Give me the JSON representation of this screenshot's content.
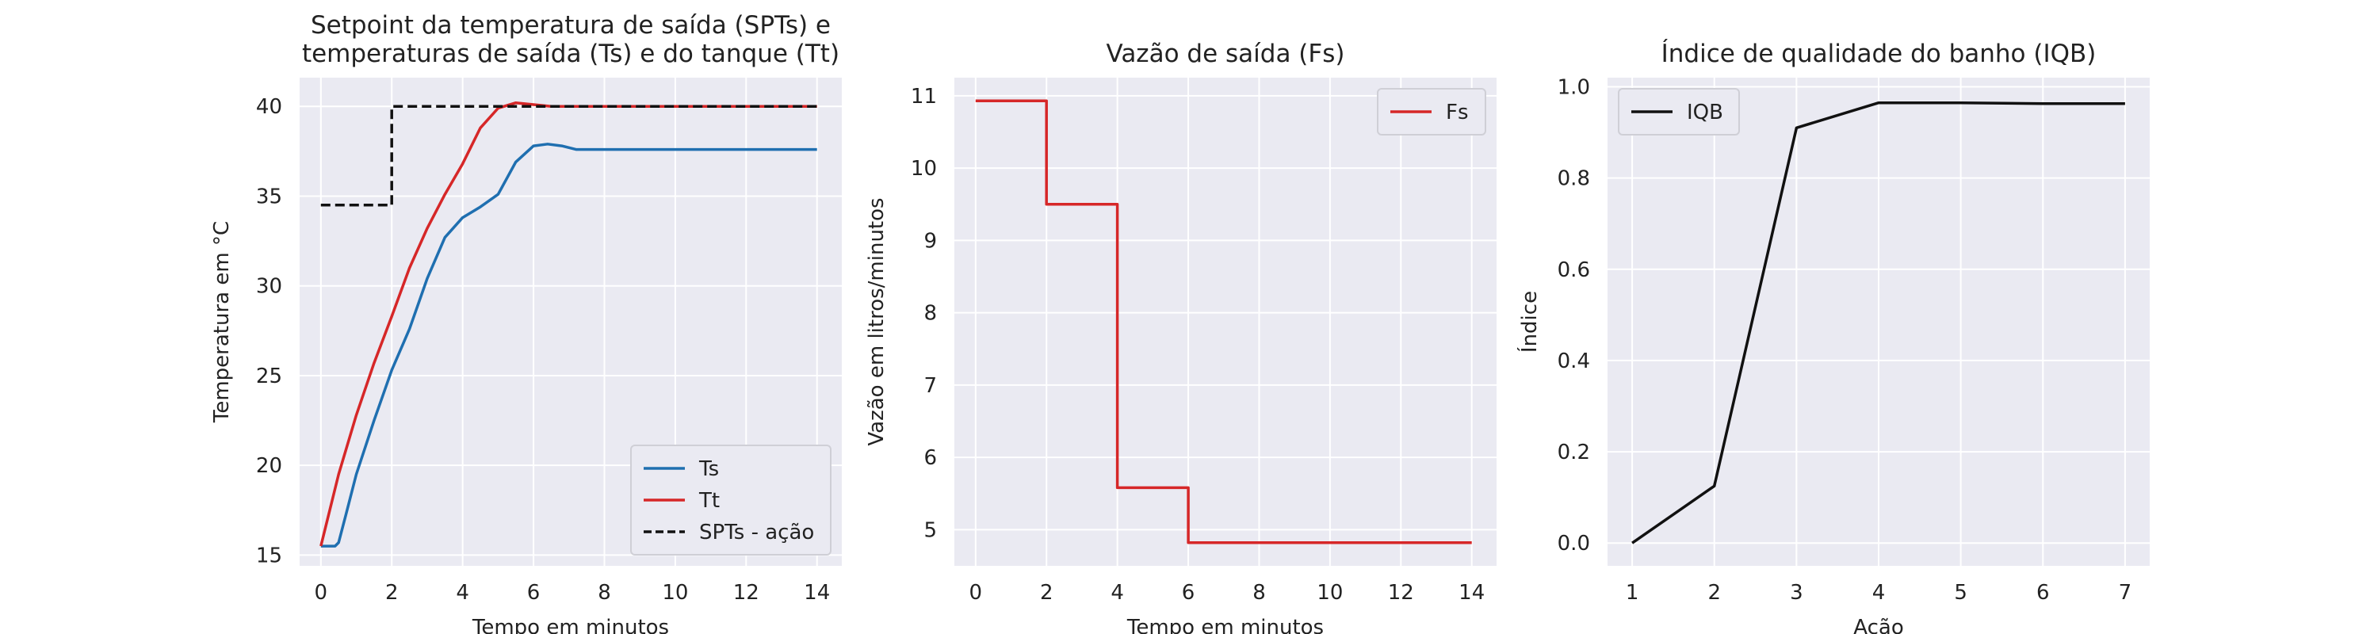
{
  "chart_data": [
    {
      "type": "line",
      "title": "Setpoint da temperatura de saída (SPTs) e\ntemperaturas de saída (Ts) e do tanque (Tt)",
      "xlabel": "Tempo em minutos",
      "ylabel": "Temperatura em °C",
      "xlim": [
        -0.6,
        14.7
      ],
      "ylim": [
        14.4,
        41.6
      ],
      "xticks": [
        0,
        2,
        4,
        6,
        8,
        10,
        12,
        14
      ],
      "yticks": [
        15,
        20,
        25,
        30,
        35,
        40
      ],
      "grid": true,
      "legend": "bottom-right",
      "series": [
        {
          "name": "Ts",
          "color": "#1f6fb0",
          "dash": false,
          "x": [
            0,
            0.4,
            0.5,
            0.7,
            1.0,
            1.5,
            2.0,
            2.5,
            3.0,
            3.5,
            4.0,
            4.5,
            5.0,
            5.5,
            6.0,
            6.4,
            6.8,
            7.2,
            8,
            9,
            10,
            11,
            12,
            13,
            14
          ],
          "y": [
            15.5,
            15.5,
            15.7,
            17.2,
            19.5,
            22.5,
            25.3,
            27.6,
            30.4,
            32.7,
            33.8,
            34.4,
            35.1,
            36.9,
            37.8,
            37.9,
            37.8,
            37.6,
            37.6,
            37.6,
            37.6,
            37.6,
            37.6,
            37.6,
            37.6
          ]
        },
        {
          "name": "Tt",
          "color": "#d62728",
          "dash": false,
          "x": [
            0,
            0.5,
            1.0,
            1.5,
            2.0,
            2.5,
            3.0,
            3.5,
            4.0,
            4.5,
            5.0,
            5.5,
            6.0,
            6.5,
            7,
            8,
            9,
            10,
            11,
            12,
            13,
            14
          ],
          "y": [
            15.5,
            19.5,
            22.8,
            25.7,
            28.3,
            31.0,
            33.2,
            35.1,
            36.8,
            38.8,
            39.9,
            40.2,
            40.1,
            40.0,
            40.0,
            40.0,
            40.0,
            40.0,
            40.0,
            40.0,
            40.0,
            40.0
          ]
        },
        {
          "name": "SPTs - ação",
          "color": "#111111",
          "dash": true,
          "x": [
            0,
            2,
            2,
            14
          ],
          "y": [
            34.5,
            34.5,
            40.0,
            40.0
          ]
        }
      ]
    },
    {
      "type": "line",
      "title": "Vazão de saída (Fs)",
      "xlabel": "Tempo em minutos",
      "ylabel": "Vazão em litros/minutos",
      "xlim": [
        -0.6,
        14.7
      ],
      "ylim": [
        4.5,
        11.25
      ],
      "xticks": [
        0,
        2,
        4,
        6,
        8,
        10,
        12,
        14
      ],
      "yticks": [
        5,
        6,
        7,
        8,
        9,
        10,
        11
      ],
      "grid": true,
      "legend": "top-right",
      "series": [
        {
          "name": "Fs",
          "color": "#d62728",
          "dash": false,
          "x": [
            0,
            2,
            2,
            4,
            4,
            6,
            6,
            14
          ],
          "y": [
            10.93,
            10.93,
            9.5,
            9.5,
            5.58,
            5.58,
            4.82,
            4.82
          ]
        }
      ]
    },
    {
      "type": "line",
      "title": "Índice de qualidade do banho (IQB)",
      "xlabel": "Ação",
      "ylabel": "Índice",
      "xlim": [
        0.7,
        7.3
      ],
      "ylim": [
        -0.05,
        1.02
      ],
      "xticks": [
        1,
        2,
        3,
        4,
        5,
        6,
        7
      ],
      "yticks": [
        0.0,
        0.2,
        0.4,
        0.6,
        0.8,
        1.0
      ],
      "grid": true,
      "legend": "top-left",
      "series": [
        {
          "name": "IQB",
          "color": "#111111",
          "dash": false,
          "x": [
            1,
            2,
            3,
            4,
            5,
            6,
            7
          ],
          "y": [
            0.0,
            0.125,
            0.91,
            0.965,
            0.965,
            0.963,
            0.963
          ]
        }
      ]
    }
  ]
}
